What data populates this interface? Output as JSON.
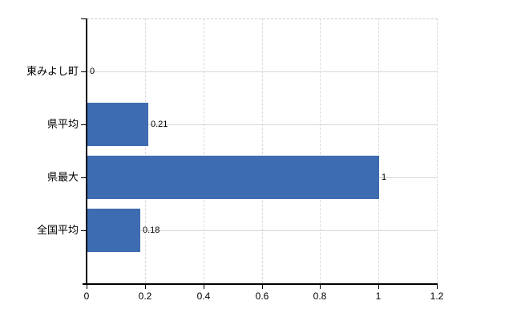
{
  "chart_data": {
    "type": "bar",
    "orientation": "horizontal",
    "categories": [
      "東みよし町",
      "県平均",
      "県最大",
      "全国平均"
    ],
    "values": [
      0,
      0.21,
      1,
      0.18
    ],
    "value_labels": [
      "0",
      "0.21",
      "1",
      "0.18"
    ],
    "x_ticks": [
      0,
      0.2,
      0.4,
      0.6,
      0.8,
      1,
      1.2
    ],
    "x_tick_labels": [
      "0",
      "0.2",
      "0.4",
      "0.6",
      "0.8",
      "1",
      "1.2"
    ],
    "xlim": [
      0,
      1.2
    ],
    "grid": true,
    "grid_style": {
      "horizontal": "solid",
      "vertical": "dashed",
      "top_border": "dashed"
    },
    "legend": "none"
  },
  "colors": {
    "bar": "#3e6cb0",
    "axis": "#000000",
    "gridline_horizontal": "#d5dad3",
    "gridline_vertical": "#d9d9d9",
    "top_border": "#d2ced2",
    "text": "#000000",
    "background": "#ffffff"
  }
}
